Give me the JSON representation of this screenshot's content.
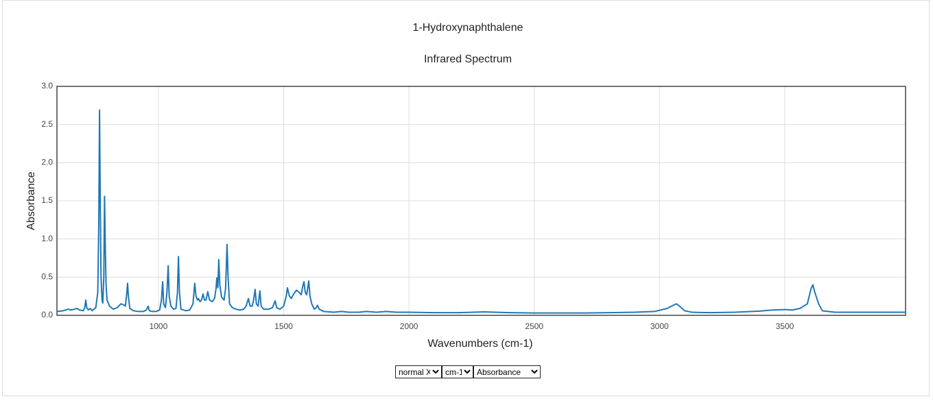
{
  "chart_data": {
    "type": "line",
    "title": "1-Hydroxynaphthalene",
    "subtitle": "Infrared Spectrum",
    "x_label": "Wavenumbers (cm-1)",
    "y_label": "Absorbance",
    "color": "#1f77b4",
    "grid": true,
    "xlim": [
      595,
      3982
    ],
    "ylim": [
      0,
      3
    ],
    "xticks": [
      1000,
      1500,
      2000,
      2500,
      3000,
      3500
    ],
    "yticks": [
      {
        "value": 0,
        "label": "0.0"
      },
      0.5,
      {
        "value": 1,
        "label": "1.0"
      },
      1.5,
      {
        "value": 2,
        "label": "2.0"
      },
      2.5,
      {
        "value": 3,
        "label": "3.0"
      }
    ],
    "x": [
      595,
      620,
      640,
      650,
      665,
      675,
      685,
      700,
      706,
      710,
      714,
      720,
      728,
      735,
      742,
      750,
      758,
      762,
      765,
      768,
      771,
      775,
      778,
      782,
      785,
      788,
      791,
      795,
      805,
      820,
      835,
      850,
      860,
      868,
      874,
      877,
      880,
      886,
      900,
      920,
      940,
      952,
      959,
      964,
      975,
      990,
      1005,
      1012,
      1017,
      1021,
      1028,
      1034,
      1039,
      1043,
      1050,
      1060,
      1070,
      1076,
      1080,
      1084,
      1090,
      1110,
      1125,
      1138,
      1145,
      1150,
      1156,
      1160,
      1166,
      1172,
      1178,
      1184,
      1190,
      1197,
      1204,
      1215,
      1224,
      1230,
      1233,
      1237,
      1241,
      1245,
      1252,
      1262,
      1268,
      1274,
      1278,
      1284,
      1295,
      1310,
      1325,
      1340,
      1350,
      1359,
      1366,
      1374,
      1380,
      1386,
      1391,
      1398,
      1405,
      1410,
      1420,
      1440,
      1455,
      1466,
      1472,
      1485,
      1500,
      1510,
      1515,
      1522,
      1530,
      1540,
      1551,
      1562,
      1570,
      1576,
      1581,
      1586,
      1592,
      1600,
      1605,
      1612,
      1622,
      1630,
      1635,
      1642,
      1660,
      1700,
      1730,
      1760,
      1800,
      1830,
      1870,
      1910,
      1950,
      2000,
      2100,
      2200,
      2300,
      2400,
      2500,
      2600,
      2700,
      2800,
      2900,
      2980,
      3030,
      3060,
      3068,
      3080,
      3100,
      3130,
      3200,
      3300,
      3400,
      3450,
      3500,
      3530,
      3560,
      3590,
      3605,
      3612,
      3620,
      3635,
      3650,
      3700,
      3800,
      3900,
      3982
    ],
    "values": [
      0.05,
      0.06,
      0.08,
      0.07,
      0.08,
      0.09,
      0.07,
      0.06,
      0.1,
      0.2,
      0.1,
      0.07,
      0.09,
      0.06,
      0.08,
      0.1,
      0.3,
      1.2,
      2.69,
      1.5,
      0.5,
      0.2,
      0.16,
      0.5,
      1.56,
      0.9,
      0.4,
      0.2,
      0.12,
      0.08,
      0.1,
      0.15,
      0.14,
      0.12,
      0.3,
      0.42,
      0.25,
      0.09,
      0.06,
      0.05,
      0.05,
      0.07,
      0.12,
      0.06,
      0.05,
      0.05,
      0.07,
      0.2,
      0.44,
      0.15,
      0.1,
      0.3,
      0.65,
      0.25,
      0.12,
      0.08,
      0.09,
      0.3,
      0.77,
      0.3,
      0.08,
      0.06,
      0.07,
      0.15,
      0.42,
      0.25,
      0.2,
      0.22,
      0.18,
      0.2,
      0.28,
      0.2,
      0.2,
      0.31,
      0.2,
      0.18,
      0.22,
      0.35,
      0.49,
      0.36,
      0.73,
      0.4,
      0.24,
      0.2,
      0.35,
      0.93,
      0.5,
      0.15,
      0.1,
      0.08,
      0.07,
      0.08,
      0.12,
      0.22,
      0.12,
      0.12,
      0.2,
      0.34,
      0.15,
      0.12,
      0.32,
      0.12,
      0.08,
      0.08,
      0.1,
      0.19,
      0.1,
      0.08,
      0.12,
      0.25,
      0.36,
      0.26,
      0.22,
      0.28,
      0.33,
      0.3,
      0.27,
      0.38,
      0.44,
      0.3,
      0.27,
      0.45,
      0.25,
      0.15,
      0.08,
      0.1,
      0.13,
      0.08,
      0.05,
      0.04,
      0.05,
      0.04,
      0.04,
      0.05,
      0.04,
      0.05,
      0.04,
      0.04,
      0.035,
      0.035,
      0.045,
      0.035,
      0.03,
      0.03,
      0.03,
      0.035,
      0.04,
      0.05,
      0.09,
      0.14,
      0.15,
      0.12,
      0.06,
      0.04,
      0.035,
      0.04,
      0.055,
      0.07,
      0.075,
      0.07,
      0.09,
      0.15,
      0.35,
      0.4,
      0.3,
      0.15,
      0.06,
      0.04,
      0.04,
      0.04,
      0.04
    ]
  },
  "controls": [
    {
      "label": "normal X"
    },
    {
      "label": "cm-1"
    },
    {
      "label": "Absorbance"
    }
  ]
}
